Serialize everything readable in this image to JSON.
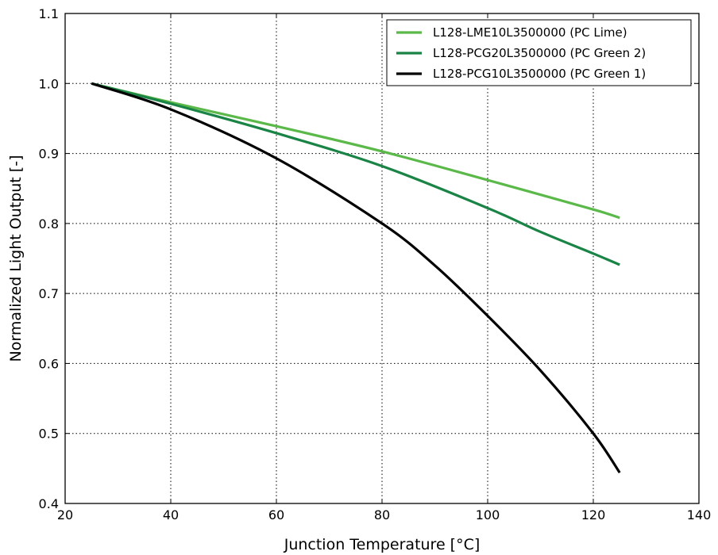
{
  "chart_data": {
    "type": "line",
    "xlabel": "Junction Temperature [°C]",
    "ylabel": "Normalized Light Output [-]",
    "xlim": [
      20,
      140
    ],
    "ylim": [
      0.4,
      1.1
    ],
    "xticks": [
      "20",
      "40",
      "60",
      "80",
      "100",
      "120",
      "140"
    ],
    "yticks": [
      "0.4",
      "0.5",
      "0.6",
      "0.7",
      "0.8",
      "0.9",
      "1.0",
      "1.1"
    ],
    "grid": true,
    "legend_position": "top-right",
    "series": [
      {
        "name": "L128-LME10L3500000 (PC Lime)",
        "color": "#5bb94a",
        "x": [
          25,
          40,
          60,
          80,
          100,
          120,
          125
        ],
        "y": [
          1.0,
          0.973,
          0.939,
          0.903,
          0.862,
          0.82,
          0.808
        ]
      },
      {
        "name": "L128-PCG20L3500000 (PC Green 2)",
        "color": "#1a8446",
        "x": [
          25,
          40,
          60,
          80,
          100,
          110,
          120,
          125
        ],
        "y": [
          1.0,
          0.971,
          0.929,
          0.882,
          0.822,
          0.788,
          0.757,
          0.741
        ]
      },
      {
        "name": "L128-PCG10L3500000 (PC Green 1)",
        "color": "#000000",
        "x": [
          25,
          40,
          60,
          80,
          90,
          100,
          110,
          120,
          125
        ],
        "y": [
          1.0,
          0.963,
          0.893,
          0.8,
          0.74,
          0.668,
          0.59,
          0.5,
          0.444
        ]
      }
    ]
  }
}
